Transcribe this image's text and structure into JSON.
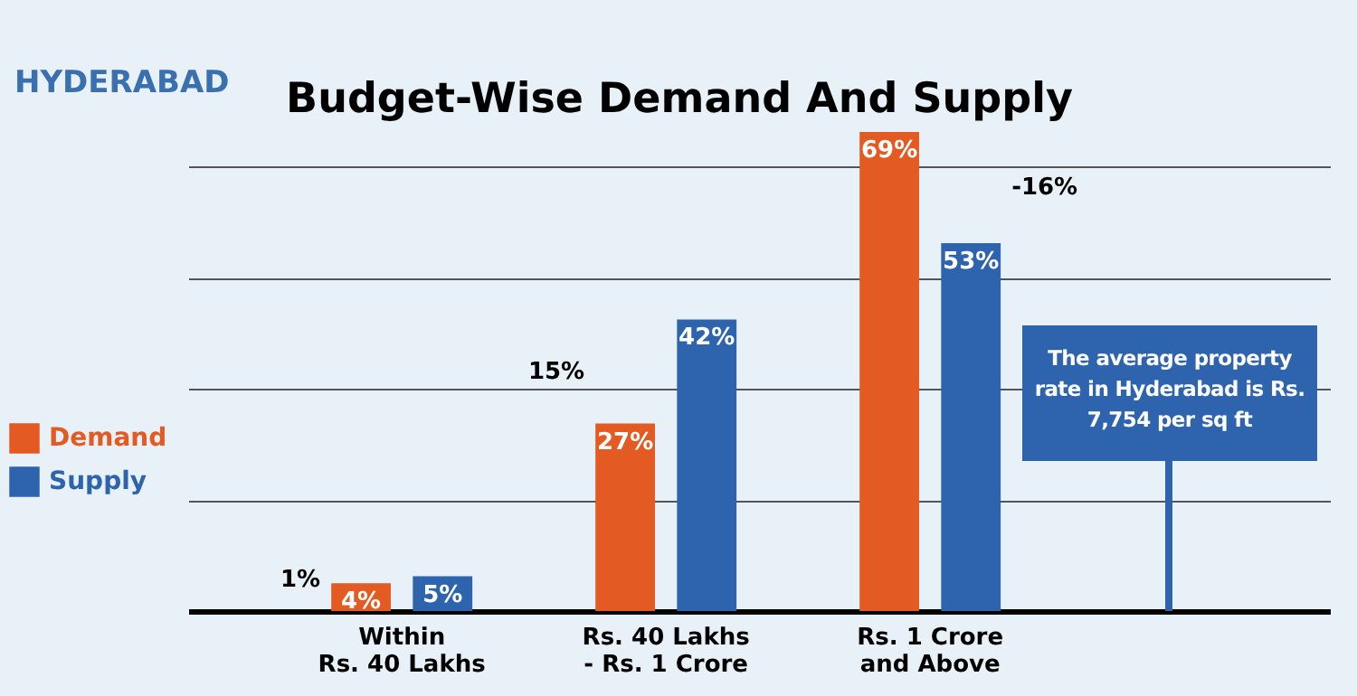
{
  "chart_data": {
    "type": "bar",
    "title": "Budget-Wise Demand And Supply",
    "categories": [
      "Within\nRs. 40 Lakhs",
      "Rs. 40 Lakhs\n- Rs. 1 Crore",
      "Rs. 1 Crore\nand Above"
    ],
    "series": [
      {
        "name": "Demand",
        "color": "#e35b22",
        "values": [
          4,
          27,
          69
        ],
        "value_labels": [
          "4%",
          "27%",
          "69%"
        ]
      },
      {
        "name": "Supply",
        "color": "#2e64ad",
        "values": [
          5,
          42,
          53
        ],
        "value_labels": [
          "5%",
          "42%",
          "53%"
        ]
      }
    ],
    "ylim": [
      0,
      69
    ],
    "yticks": [
      {
        "value": 16,
        "label": null
      },
      {
        "value": 32,
        "label": null
      },
      {
        "value": 48,
        "label": null
      },
      {
        "value": 64,
        "label": null
      }
    ],
    "grid": "y",
    "tick_labels": "x",
    "legend": "left",
    "annotations": [
      "HYDERABAD",
      "1%",
      "15%",
      "-16%",
      "The average property rate in Hyderabad is Rs. 7,754 per sq ft"
    ]
  }
}
